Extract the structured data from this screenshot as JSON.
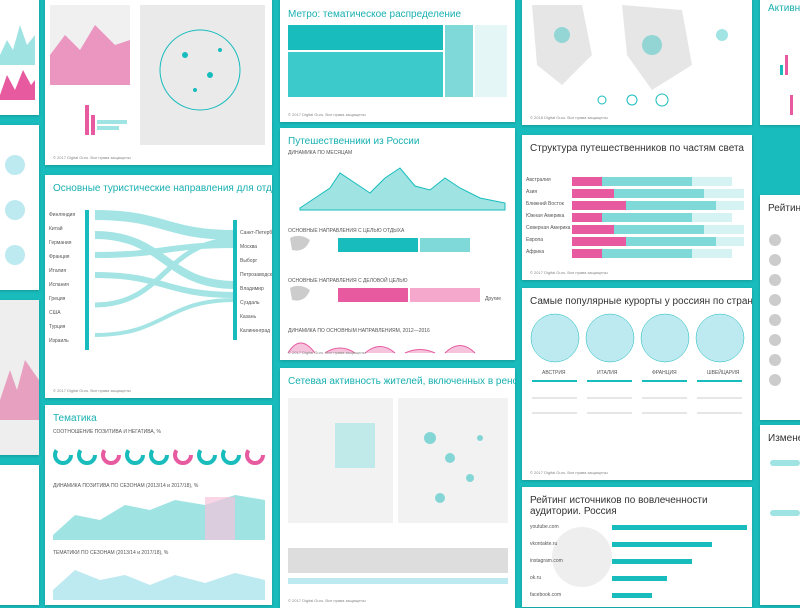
{
  "cards": {
    "maps_a": {
      "footer": "© 2017 Digital Guru. Все права защищены"
    },
    "sankey": {
      "title": "Основные туристические направления для отдыха",
      "left": [
        "Финляндия",
        "Китай",
        "Германия",
        "Франция",
        "Италия",
        "Испания",
        "Греция",
        "США",
        "Турция",
        "Израиль"
      ],
      "right": [
        "Санкт-Петербург",
        "Москва",
        "Выборг",
        "Петрозаводск",
        "Владимир",
        "Суздаль",
        "Казань",
        "Калининград"
      ],
      "footer": "© 2017 Digital Guru. Все права защищены"
    },
    "themes": {
      "title": "Тематика",
      "sub1": "СООТНОШЕНИЕ ПОЗИТИВА И НЕГАТИВА, %",
      "sub2": "ДИНАМИКА ПОЗИТИВА ПО СЕЗОНАМ (2013/14 и 2017/18), %",
      "sub3": "ТЕМАТИКИ ПО СЕЗОНАМ (2013/14 и 2017/18), %"
    },
    "metro": {
      "title": "Метро: тематическое распределение",
      "footer": "© 2017 Digital Guru. Все права защищены"
    },
    "travel": {
      "title": "Путешественники из России",
      "sub1": "ДИНАМИКА ПО МЕСЯЦАМ",
      "sub2": "ОСНОВНЫЕ НАПРАВЛЕНИЯ С ЦЕЛЬЮ ОТДЫХА",
      "sub3": "ОСНОВНЫЕ НАПРАВЛЕНИЯ С ДЕЛОВОЙ ЦЕЛЬЮ",
      "sub4": "ДИНАМИКА ПО ОСНОВНЫМ НАПРАВЛЕНИЯМ, 2012—2016",
      "other": "Другие",
      "footer": "© 2017 Digital Guru. Все права защищены"
    },
    "network": {
      "title": "Сетевая активность жителей, включенных в реновацию",
      "footer": "© 2017 Digital Guru. Все права защищены"
    },
    "maps_b": {
      "footer": "© 2018 Digital Guru. Все права защищены"
    },
    "structure": {
      "title": "Структура путешественников по частям света",
      "rows": [
        "Австралия",
        "Азия",
        "Ближний Восток",
        "Южная Америка",
        "Северная Америка",
        "Европа",
        "Африка"
      ],
      "footer": "© 2017 Digital Guru. Все права защищены"
    },
    "resorts": {
      "title": "Самые популярные курорты у россиян по странам",
      "countries": [
        "АВСТРИЯ",
        "ИТАЛИЯ",
        "ФРАНЦИЯ",
        "ШВЕЙЦАРИЯ"
      ],
      "footer": "© 2017 Digital Guru. Все права защищены"
    },
    "ranking": {
      "title": "Рейтинг источников по вовлеченности аудитории. Россия",
      "sources": [
        "youtube.com",
        "vkontakte.ru",
        "instagram.com",
        "ok.ru",
        "facebook.com"
      ]
    },
    "edge1": {
      "title": "Активность"
    },
    "edge2": {
      "title": "Рейтинг и"
    },
    "edge3": {
      "title": "Изменения"
    }
  }
}
